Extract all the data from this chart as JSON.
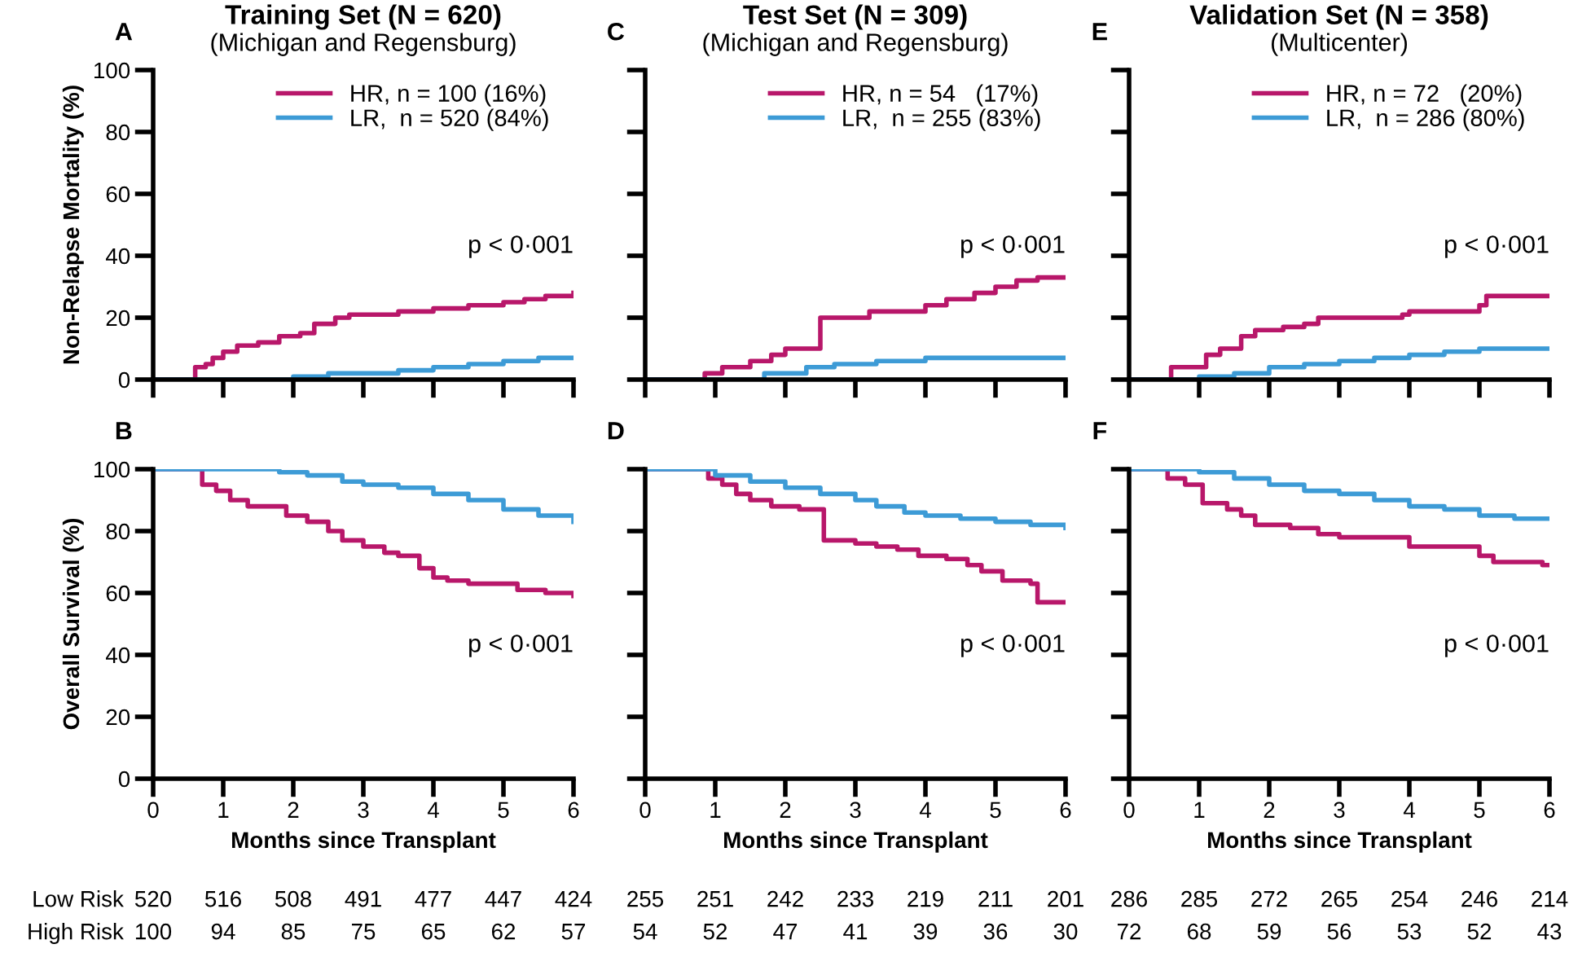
{
  "chart_data": [
    {
      "type": "step",
      "title": "Training Set (N = 620)",
      "subtitle": "(Michigan and Regensburg)",
      "ylabel": "Non-Relapse Mortality (%)",
      "xlim": [
        0,
        6
      ],
      "xticks": [
        0,
        1,
        2,
        3,
        4,
        5,
        6
      ],
      "ylim": [
        0,
        100
      ],
      "yticks": [
        0,
        20,
        40,
        60,
        80,
        100
      ],
      "tick_labels": "y",
      "legend": "top",
      "grid": false,
      "annotations": [
        "A",
        "p < 0·001"
      ],
      "series": [
        {
          "name": "HR, n = 100 (16%)",
          "color": "#b8176a",
          "x": [
            0,
            0.55,
            0.6,
            0.75,
            0.85,
            1.0,
            1.2,
            1.5,
            1.8,
            2.1,
            2.3,
            2.6,
            2.8,
            3.5,
            4.0,
            4.5,
            5.0,
            5.3,
            5.6,
            6
          ],
          "values": [
            0,
            0,
            4,
            5,
            7,
            9,
            11,
            12,
            14,
            15,
            18,
            20,
            21,
            22,
            23,
            24,
            25,
            26,
            27,
            28
          ]
        },
        {
          "name": "LR,  n = 520 (84%)",
          "color": "#3d9bd6",
          "x": [
            0,
            1.5,
            2,
            2.5,
            3.5,
            4,
            4.5,
            5,
            5.5,
            6
          ],
          "values": [
            0,
            0,
            1,
            2,
            3,
            4,
            5,
            6,
            7,
            7
          ]
        }
      ]
    },
    {
      "type": "step",
      "title": "Test Set (N = 309)",
      "subtitle": "(Michigan and Regensburg)",
      "xlim": [
        0,
        6
      ],
      "xticks": [
        0,
        1,
        2,
        3,
        4,
        5,
        6
      ],
      "ylim": [
        0,
        100
      ],
      "yticks": [
        0,
        20,
        40,
        60,
        80,
        100
      ],
      "tick_labels": false,
      "legend": "top",
      "grid": false,
      "annotations": [
        "C",
        "p < 0·001"
      ],
      "series": [
        {
          "name": "HR, n = 54   (17%)",
          "color": "#b8176a",
          "x": [
            0,
            0.85,
            1.1,
            1.5,
            1.8,
            2.0,
            2.5,
            3.2,
            4.0,
            4.3,
            4.7,
            5.0,
            5.3,
            5.6,
            6
          ],
          "values": [
            0,
            2,
            4,
            6,
            8,
            10,
            20,
            22,
            24,
            26,
            28,
            30,
            32,
            33,
            33
          ]
        },
        {
          "name": "LR,  n = 255 (83%)",
          "color": "#3d9bd6",
          "x": [
            0,
            1.0,
            1.7,
            2.3,
            2.7,
            3.3,
            4.0,
            6
          ],
          "values": [
            0,
            0,
            2,
            4,
            5,
            6,
            7,
            7
          ]
        }
      ]
    },
    {
      "type": "step",
      "title": "Validation Set (N = 358)",
      "subtitle": "(Multicenter)",
      "xlim": [
        0,
        6
      ],
      "xticks": [
        0,
        1,
        2,
        3,
        4,
        5,
        6
      ],
      "ylim": [
        0,
        100
      ],
      "yticks": [
        0,
        20,
        40,
        60,
        80,
        100
      ],
      "tick_labels": false,
      "legend": "top",
      "grid": false,
      "annotations": [
        "E",
        "p < 0·001"
      ],
      "series": [
        {
          "name": "HR, n = 72   (20%)",
          "color": "#b8176a",
          "x": [
            0,
            0.55,
            0.6,
            1.1,
            1.3,
            1.6,
            1.8,
            2.2,
            2.5,
            2.7,
            3.9,
            4.0,
            5.0,
            5.1,
            6
          ],
          "values": [
            0,
            0,
            4,
            8,
            10,
            14,
            16,
            17,
            18,
            20,
            21,
            22,
            24,
            27,
            27
          ]
        },
        {
          "name": "LR,  n = 286 (80%)",
          "color": "#3d9bd6",
          "x": [
            0,
            0.5,
            1.0,
            1.5,
            2.0,
            2.5,
            3.0,
            3.5,
            4.0,
            4.5,
            5.0,
            6
          ],
          "values": [
            0,
            0,
            1,
            2,
            4,
            5,
            6,
            7,
            8,
            9,
            10,
            10
          ]
        }
      ]
    },
    {
      "type": "step",
      "xlabel": "Months since Transplant",
      "ylabel": "Overall Survival (%)",
      "xlim": [
        0,
        6
      ],
      "xticks": [
        0,
        1,
        2,
        3,
        4,
        5,
        6
      ],
      "ylim": [
        0,
        100
      ],
      "yticks": [
        0,
        20,
        40,
        60,
        80,
        100
      ],
      "grid": false,
      "annotations": [
        "B",
        "p < 0·001",
        "Low Risk",
        "520",
        "516",
        "508",
        "491",
        "477",
        "447",
        "424",
        "High Risk",
        "100",
        "94",
        "85",
        "75",
        "65",
        "62",
        "57"
      ],
      "series": [
        {
          "color": "#b8176a",
          "x": [
            0,
            0.57,
            0.7,
            0.9,
            1.1,
            1.35,
            1.9,
            2.2,
            2.5,
            2.7,
            3.0,
            3.3,
            3.5,
            3.8,
            4.0,
            4.2,
            4.5,
            5.2,
            5.6,
            6
          ],
          "values": [
            100,
            100,
            95,
            93,
            90,
            88,
            85,
            83,
            80,
            77,
            75,
            73,
            72,
            68,
            65,
            64,
            63,
            61,
            60,
            59
          ]
        },
        {
          "color": "#3d9bd6",
          "x": [
            0,
            1.5,
            1.8,
            2.2,
            2.7,
            3.0,
            3.5,
            4.0,
            4.5,
            5.0,
            5.5,
            6
          ],
          "values": [
            100,
            100,
            99,
            98,
            96,
            95,
            94,
            92,
            90,
            87,
            85,
            83
          ]
        }
      ]
    },
    {
      "type": "step",
      "xlabel": "Months since Transplant",
      "xlim": [
        0,
        6
      ],
      "xticks": [
        0,
        1,
        2,
        3,
        4,
        5,
        6
      ],
      "ylim": [
        0,
        100
      ],
      "yticks": [
        0,
        20,
        40,
        60,
        80,
        100
      ],
      "tick_labels": "x",
      "grid": false,
      "annotations": [
        "D",
        "p < 0·001",
        "255",
        "251",
        "242",
        "233",
        "219",
        "211",
        "201",
        "54",
        "52",
        "47",
        "41",
        "39",
        "36",
        "30"
      ],
      "series": [
        {
          "color": "#b8176a",
          "x": [
            0,
            0.8,
            0.9,
            1.1,
            1.3,
            1.5,
            1.8,
            2.2,
            2.55,
            3.0,
            3.3,
            3.6,
            3.9,
            4.3,
            4.6,
            4.8,
            5.1,
            5.5,
            5.6,
            6
          ],
          "values": [
            100,
            100,
            97,
            95,
            92,
            90,
            88,
            87,
            77,
            76,
            75,
            74,
            72,
            71,
            69,
            67,
            64,
            63,
            57,
            57
          ]
        },
        {
          "color": "#3d9bd6",
          "x": [
            0,
            0.7,
            1.0,
            1.5,
            2.0,
            2.5,
            3.0,
            3.3,
            3.7,
            4.0,
            4.5,
            5.0,
            5.5,
            6
          ],
          "values": [
            100,
            100,
            98,
            96,
            94,
            92,
            90,
            88,
            86,
            85,
            84,
            83,
            82,
            81
          ]
        }
      ]
    },
    {
      "type": "step",
      "xlabel": "Months since Transplant",
      "subtitle": null,
      "xlim": [
        0,
        6
      ],
      "xticks": [
        0,
        1,
        2,
        3,
        4,
        5,
        6
      ],
      "ylim": [
        0,
        100
      ],
      "yticks": [
        0,
        20,
        40,
        60,
        80,
        100
      ],
      "tick_labels": "x",
      "grid": false,
      "annotations": [
        "F",
        "p < 0·001",
        "286",
        "285",
        "272",
        "265",
        "254",
        "246",
        "214",
        "72",
        "68",
        "59",
        "56",
        "53",
        "52",
        "43"
      ],
      "series": [
        {
          "color": "#b8176a",
          "x": [
            0,
            0.4,
            0.55,
            0.8,
            1.05,
            1.4,
            1.6,
            1.8,
            2.3,
            2.7,
            3.0,
            4.0,
            5.0,
            5.2,
            5.9,
            6
          ],
          "values": [
            100,
            100,
            97,
            95,
            89,
            87,
            85,
            82,
            81,
            79,
            78,
            75,
            72,
            70,
            69,
            69
          ]
        },
        {
          "color": "#3d9bd6",
          "x": [
            0,
            0.5,
            1.0,
            1.5,
            2.0,
            2.5,
            3.0,
            3.5,
            4.0,
            4.5,
            5.0,
            5.5,
            6
          ],
          "values": [
            100,
            100,
            99,
            97,
            95,
            93,
            92,
            90,
            88,
            87,
            85,
            84,
            84
          ]
        }
      ]
    }
  ]
}
